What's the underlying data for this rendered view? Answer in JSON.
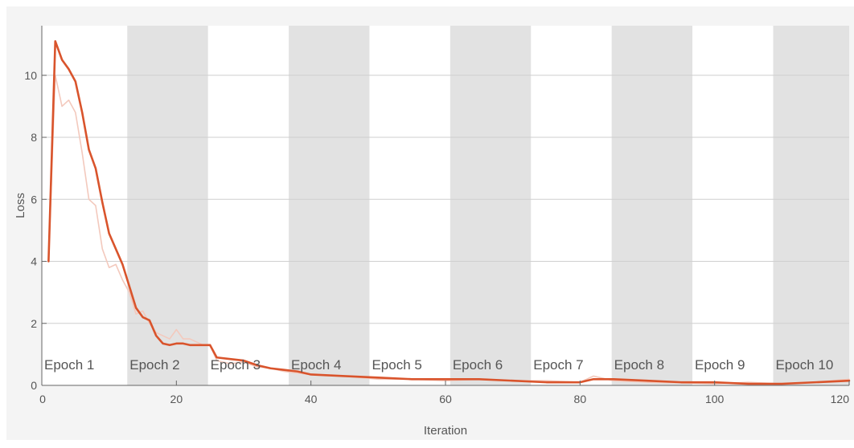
{
  "chart_data": {
    "type": "line",
    "xlabel": "Iteration",
    "ylabel": "Loss",
    "xlim": [
      0,
      120
    ],
    "ylim": [
      0,
      11.6
    ],
    "x_ticks": [
      0,
      20,
      40,
      60,
      80,
      100,
      120
    ],
    "y_ticks": [
      0,
      2,
      4,
      6,
      8,
      10
    ],
    "grid": true,
    "epoch_bands": [
      {
        "label": "Epoch 1",
        "start": 0,
        "end": 12.7
      },
      {
        "label": "Epoch 2",
        "start": 12.7,
        "end": 24.7
      },
      {
        "label": "Epoch 3",
        "start": 24.7,
        "end": 36.7
      },
      {
        "label": "Epoch 4",
        "start": 36.7,
        "end": 48.7
      },
      {
        "label": "Epoch 5",
        "start": 48.7,
        "end": 60.7
      },
      {
        "label": "Epoch 6",
        "start": 60.7,
        "end": 72.7
      },
      {
        "label": "Epoch 7",
        "start": 72.7,
        "end": 84.7
      },
      {
        "label": "Epoch 8",
        "start": 84.7,
        "end": 96.7
      },
      {
        "label": "Epoch 9",
        "start": 96.7,
        "end": 108.7
      },
      {
        "label": "Epoch 10",
        "start": 108.7,
        "end": 120
      }
    ],
    "series": [
      {
        "color": "#f3c9bd",
        "x": [
          1,
          2,
          3,
          4,
          5,
          6,
          7,
          8,
          9,
          10,
          11,
          12,
          13,
          14,
          15,
          16,
          17,
          18,
          19,
          20,
          21,
          22,
          23,
          24,
          25,
          26,
          28,
          30,
          32,
          34,
          36,
          38,
          40,
          45,
          50,
          55,
          60,
          65,
          70,
          75,
          80,
          82,
          85,
          90,
          95,
          100,
          105,
          110,
          115,
          120
        ],
        "values": [
          4.0,
          10.0,
          9.0,
          9.2,
          8.8,
          7.5,
          6.0,
          5.8,
          4.4,
          3.8,
          3.9,
          3.4,
          3.0,
          2.3,
          2.4,
          2.0,
          1.7,
          1.6,
          1.5,
          1.8,
          1.5,
          1.5,
          1.4,
          1.3,
          1.3,
          0.8,
          0.7,
          0.75,
          0.6,
          0.55,
          0.45,
          0.4,
          0.35,
          0.3,
          0.2,
          0.2,
          0.15,
          0.2,
          0.15,
          0.15,
          0.1,
          0.3,
          0.15,
          0.1,
          0.08,
          0.05,
          0.1,
          0.05,
          0.1,
          0.2
        ]
      },
      {
        "color": "#d9542c",
        "x": [
          1,
          2,
          3,
          4,
          5,
          6,
          7,
          8,
          9,
          10,
          11,
          12,
          13,
          14,
          15,
          16,
          17,
          18,
          19,
          20,
          21,
          22,
          23,
          24,
          25,
          26,
          28,
          30,
          32,
          34,
          36,
          38,
          40,
          45,
          50,
          55,
          60,
          65,
          70,
          75,
          80,
          82,
          85,
          90,
          95,
          100,
          105,
          110,
          115,
          120
        ],
        "values": [
          4.0,
          11.1,
          10.5,
          10.2,
          9.8,
          8.8,
          7.6,
          7.0,
          5.9,
          4.9,
          4.4,
          3.9,
          3.2,
          2.5,
          2.2,
          2.1,
          1.6,
          1.35,
          1.3,
          1.35,
          1.35,
          1.3,
          1.3,
          1.3,
          1.3,
          0.9,
          0.85,
          0.8,
          0.65,
          0.55,
          0.5,
          0.45,
          0.35,
          0.3,
          0.25,
          0.2,
          0.2,
          0.2,
          0.15,
          0.1,
          0.1,
          0.2,
          0.2,
          0.15,
          0.1,
          0.1,
          0.05,
          0.05,
          0.1,
          0.15
        ]
      }
    ],
    "colors": {
      "band_shade": "#e2e2e2",
      "grid": "#cfcfcf",
      "axis": "#666666"
    }
  }
}
